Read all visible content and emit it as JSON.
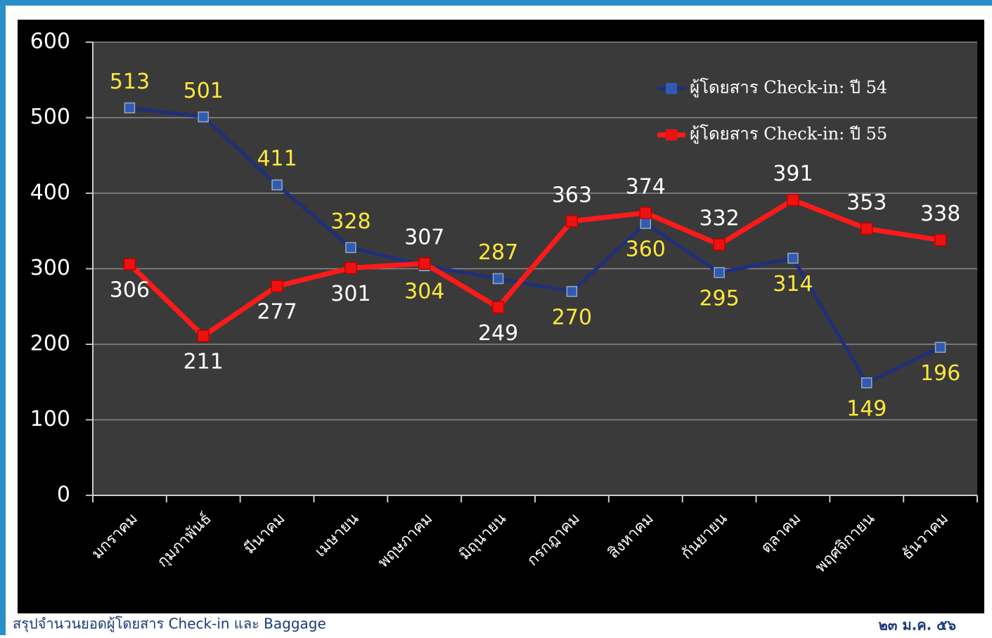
{
  "chart_data": {
    "type": "line",
    "categories": [
      "มกราคม",
      "กุมภาพันธ์",
      "มีนาคม",
      "เมษายน",
      "พฤษภาคม",
      "มิถุนายน",
      "กรกฎาคม",
      "สิงหาคม",
      "กันยายน",
      "ตุลาคม",
      "พฤศจิกายน",
      "ธันวาคม"
    ],
    "series": [
      {
        "name": "ผู้โดยสาร Check-in: ปี 54",
        "color": "#1f2f7a",
        "marker_color": "#2f5bb5",
        "label_color": "#ffe83a",
        "values": [
          513,
          501,
          411,
          328,
          304,
          287,
          270,
          360,
          295,
          314,
          149,
          196
        ]
      },
      {
        "name": "ผู้โดยสาร Check-in: ปี 55",
        "color": "#ff1a1a",
        "marker_color": "#ee1111",
        "label_color": "#ffffff",
        "values": [
          306,
          211,
          277,
          301,
          307,
          249,
          363,
          374,
          332,
          391,
          353,
          338
        ]
      }
    ],
    "ylim": [
      0,
      600
    ],
    "yticks": [
      0,
      100,
      200,
      300,
      400,
      500,
      600
    ],
    "grid": true,
    "legend": "upper right",
    "footer": {
      "left": "สรุปจำนวนยอดผู้โดยสาร Check-in และ Baggage",
      "right": "๒๓ ม.ค. ๕๖"
    }
  }
}
